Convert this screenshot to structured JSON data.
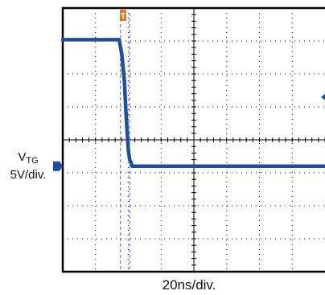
{
  "chart_data": {
    "type": "line",
    "title": "",
    "channel_label": {
      "main": "V",
      "subscript": "TG",
      "scale": "5V/div."
    },
    "time_scale": "20ns/div.",
    "x_unit": "ns",
    "xlim": [
      0,
      200
    ],
    "ylim": [
      -20,
      20
    ],
    "y_unit": "V",
    "grid": true,
    "trigger_marker_label": "T",
    "cursor_times_ns": [
      44,
      51
    ],
    "series": [
      {
        "color": "#1f4e9c",
        "x": [
          0,
          43,
          45,
          47,
          48,
          49,
          50,
          51,
          52,
          53,
          200
        ],
        "y": [
          15.2,
          15.2,
          13.0,
          9.0,
          5.0,
          1.5,
          -1.5,
          -3.0,
          -3.4,
          -4.0,
          -4.0
        ]
      }
    ],
    "colors": {
      "trace": "#1f4e9c",
      "trigger": "#e87722",
      "cursor": "#5a5ab0",
      "grid": "#000000"
    }
  }
}
